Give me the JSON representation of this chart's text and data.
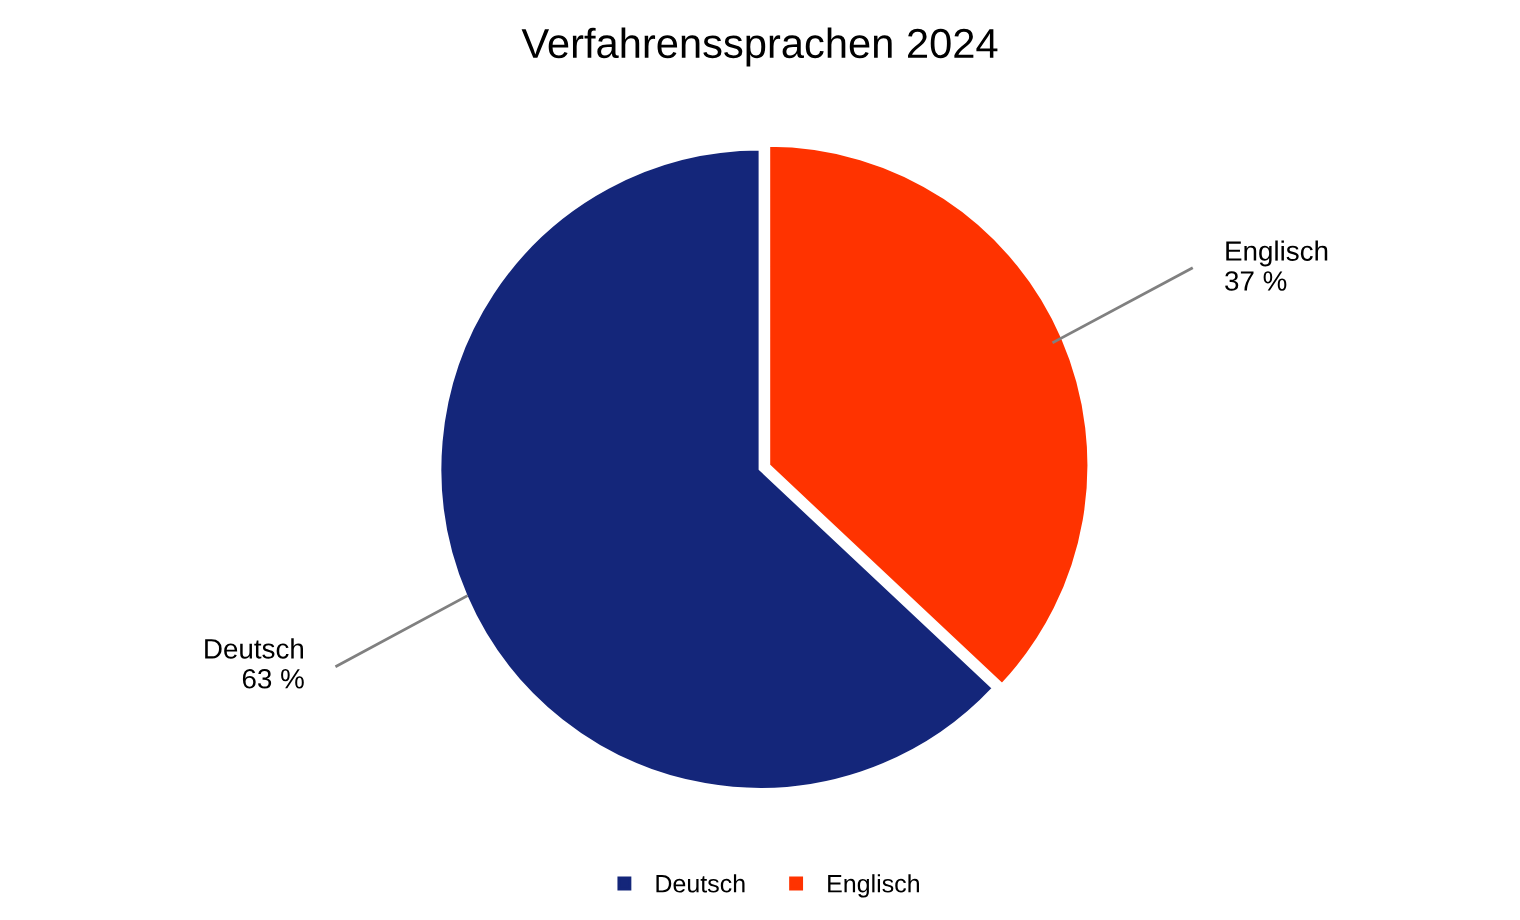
{
  "chart_data": {
    "type": "pie",
    "title": "Verfahrenssprachen 2024",
    "categories": [
      "Deutsch",
      "Englisch"
    ],
    "values": [
      63,
      37
    ],
    "value_labels": [
      "63 %",
      "37 %"
    ],
    "colors": [
      "#14267a",
      "#ff3300"
    ],
    "legend": "bottom"
  }
}
